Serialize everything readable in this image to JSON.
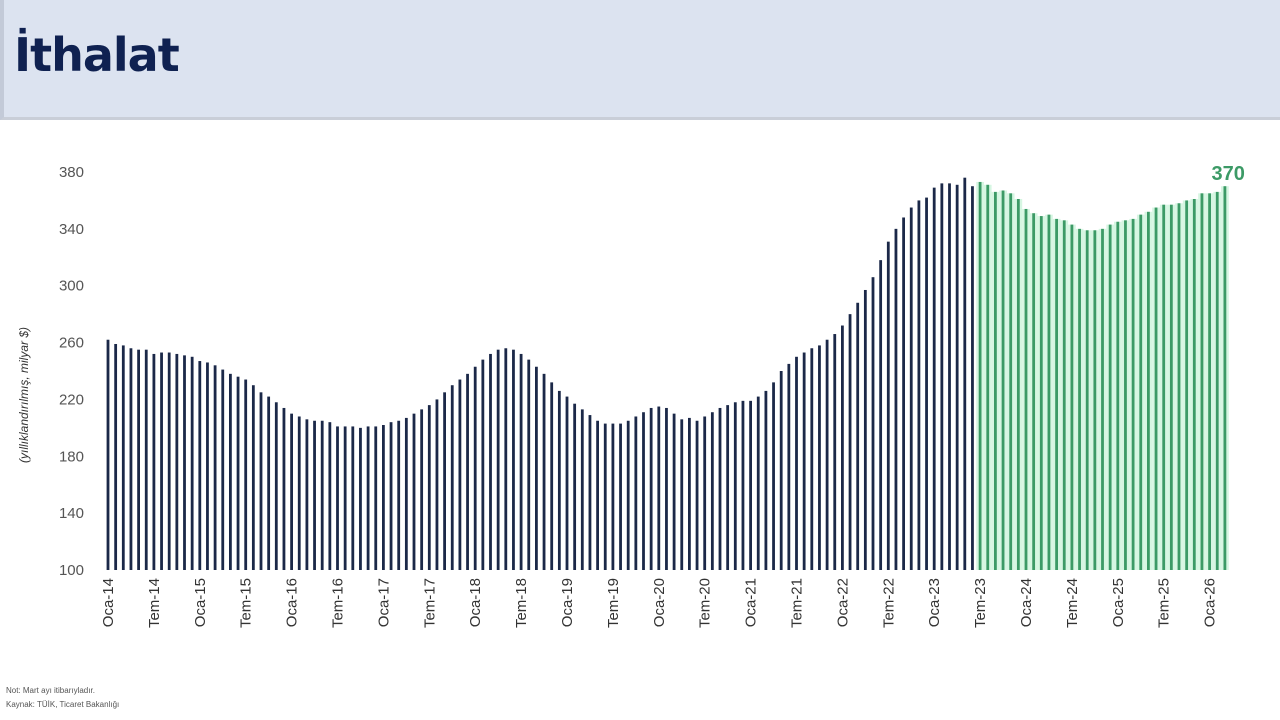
{
  "header": {
    "title": "İthalat"
  },
  "notes": {
    "note": "Not: Mart ayı itibarıyladır.",
    "source": "Kaynak: TÜİK, Ticaret Bakanlığı"
  },
  "colors": {
    "historical": "#1b2848",
    "recent": "#3c9a66",
    "recent_glow": "#d6f6e2",
    "label": "#3c9a66",
    "title": "#0f2151",
    "header_bg": "#dce3f0"
  },
  "chart_data": {
    "type": "bar",
    "title": "",
    "xlabel": "",
    "ylabel": "(yıllıklandırılmış, milyar $)",
    "ylim": [
      100,
      380
    ],
    "yticks": [
      100,
      140,
      180,
      220,
      260,
      300,
      340,
      380
    ],
    "grid": false,
    "start": "Oca-14",
    "end": "Mar-26",
    "xtick_labels": [
      "Oca-14",
      "Tem-14",
      "Oca-15",
      "Tem-15",
      "Oca-16",
      "Tem-16",
      "Oca-17",
      "Tem-17",
      "Oca-18",
      "Tem-18",
      "Oca-19",
      "Tem-19",
      "Oca-20",
      "Tem-20",
      "Oca-21",
      "Tem-21",
      "Oca-22",
      "Tem-22",
      "Oca-23",
      "Tem-23",
      "Oca-24",
      "Tem-24",
      "Oca-25",
      "Tem-25",
      "Oca-26"
    ],
    "highlight_from": "Tem-23",
    "last_value_label": "370",
    "values": [
      262,
      259,
      258,
      256,
      255,
      255,
      252,
      253,
      253,
      252,
      251,
      250,
      247,
      246,
      244,
      241,
      238,
      236,
      234,
      230,
      225,
      222,
      218,
      214,
      210,
      208,
      206,
      205,
      205,
      204,
      201,
      201,
      201,
      200,
      201,
      201,
      202,
      204,
      205,
      207,
      210,
      213,
      216,
      220,
      225,
      230,
      234,
      238,
      243,
      248,
      252,
      255,
      256,
      255,
      252,
      248,
      243,
      238,
      232,
      226,
      222,
      217,
      213,
      209,
      205,
      203,
      203,
      203,
      205,
      208,
      211,
      214,
      215,
      214,
      210,
      206,
      207,
      205,
      208,
      211,
      214,
      216,
      218,
      219,
      219,
      222,
      226,
      232,
      240,
      245,
      250,
      253,
      256,
      258,
      262,
      266,
      272,
      280,
      288,
      297,
      306,
      318,
      331,
      340,
      348,
      355,
      360,
      362,
      369,
      372,
      372,
      371,
      376,
      370,
      373,
      371,
      366,
      367,
      365,
      361,
      354,
      351,
      349,
      350,
      347,
      346,
      343,
      340,
      339,
      339,
      340,
      343,
      345,
      346,
      347,
      350,
      352,
      355,
      357,
      357,
      358,
      360,
      361,
      365,
      365,
      366,
      370
    ]
  }
}
